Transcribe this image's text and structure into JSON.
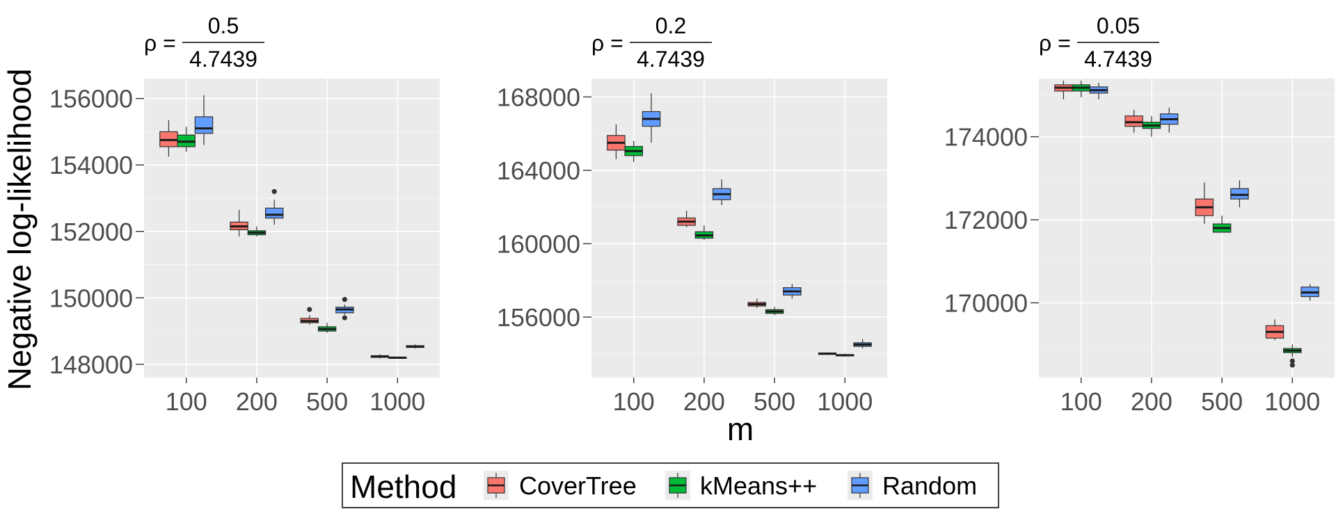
{
  "chart_data": {
    "type": "boxplot",
    "ylabel": "Negative log-likelihood",
    "xlabel": "m",
    "categories": [
      "100",
      "200",
      "500",
      "1000"
    ],
    "legend": {
      "title": "Method",
      "placement": "bottom",
      "entries": [
        {
          "name": "CoverTree",
          "color": "#F8766D"
        },
        {
          "name": "kMeans++",
          "color": "#00BA38"
        },
        {
          "name": "Random",
          "color": "#619CFF"
        }
      ]
    },
    "panels": [
      {
        "title_prefix": "ρ =",
        "title_numerator": "0.5",
        "title_denominator": "4.7439",
        "ylim": [
          147600,
          156600
        ],
        "yticks": [
          148000,
          150000,
          152000,
          154000,
          156000
        ],
        "series": [
          {
            "name": "CoverTree",
            "boxes": [
              {
                "min": 154250,
                "q1": 154550,
                "median": 154750,
                "q3": 155000,
                "max": 155350,
                "outliers": []
              },
              {
                "min": 151850,
                "q1": 152050,
                "median": 152150,
                "q3": 152280,
                "max": 152650,
                "outliers": []
              },
              {
                "min": 149200,
                "q1": 149250,
                "median": 149300,
                "q3": 149380,
                "max": 149480,
                "outliers": [
                  149650
                ]
              },
              {
                "min": 148180,
                "q1": 148210,
                "median": 148230,
                "q3": 148260,
                "max": 148300,
                "outliers": []
              }
            ]
          },
          {
            "name": "kMeans++",
            "boxes": [
              {
                "min": 154400,
                "q1": 154550,
                "median": 154700,
                "q3": 154900,
                "max": 155150,
                "outliers": []
              },
              {
                "min": 151850,
                "q1": 151900,
                "median": 151960,
                "q3": 152020,
                "max": 152150,
                "outliers": []
              },
              {
                "min": 148950,
                "q1": 149000,
                "median": 149060,
                "q3": 149130,
                "max": 149250,
                "outliers": []
              },
              {
                "min": 148180,
                "q1": 148195,
                "median": 148200,
                "q3": 148210,
                "max": 148220,
                "outliers": []
              }
            ]
          },
          {
            "name": "Random",
            "boxes": [
              {
                "min": 154600,
                "q1": 154950,
                "median": 155100,
                "q3": 155450,
                "max": 156100,
                "outliers": []
              },
              {
                "min": 152200,
                "q1": 152400,
                "median": 152500,
                "q3": 152700,
                "max": 152950,
                "outliers": [
                  153200
                ]
              },
              {
                "min": 149500,
                "q1": 149550,
                "median": 149650,
                "q3": 149720,
                "max": 149800,
                "outliers": [
                  149950,
                  149400
                ]
              },
              {
                "min": 148480,
                "q1": 148510,
                "median": 148530,
                "q3": 148560,
                "max": 148600,
                "outliers": []
              }
            ]
          }
        ]
      },
      {
        "title_prefix": "ρ =",
        "title_numerator": "0.2",
        "title_denominator": "4.7439",
        "ylim": [
          152700,
          169000
        ],
        "yticks": [
          156000,
          160000,
          164000,
          168000
        ],
        "series": [
          {
            "name": "CoverTree",
            "boxes": [
              {
                "min": 164600,
                "q1": 165100,
                "median": 165500,
                "q3": 165900,
                "max": 166500,
                "outliers": []
              },
              {
                "min": 160900,
                "q1": 161000,
                "median": 161200,
                "q3": 161400,
                "max": 161800,
                "outliers": []
              },
              {
                "min": 156500,
                "q1": 156600,
                "median": 156700,
                "q3": 156800,
                "max": 157000,
                "outliers": []
              },
              {
                "min": 153950,
                "q1": 153980,
                "median": 154000,
                "q3": 154040,
                "max": 154080,
                "outliers": []
              }
            ]
          },
          {
            "name": "kMeans++",
            "boxes": [
              {
                "min": 164450,
                "q1": 164800,
                "median": 165050,
                "q3": 165300,
                "max": 165600,
                "outliers": []
              },
              {
                "min": 160200,
                "q1": 160300,
                "median": 160450,
                "q3": 160650,
                "max": 161000,
                "outliers": []
              },
              {
                "min": 156100,
                "q1": 156200,
                "median": 156300,
                "q3": 156400,
                "max": 156550,
                "outliers": []
              },
              {
                "min": 153850,
                "q1": 153900,
                "median": 153920,
                "q3": 153950,
                "max": 154000,
                "outliers": []
              }
            ]
          },
          {
            "name": "Random",
            "boxes": [
              {
                "min": 165500,
                "q1": 166400,
                "median": 166800,
                "q3": 167200,
                "max": 168200,
                "outliers": []
              },
              {
                "min": 162100,
                "q1": 162400,
                "median": 162700,
                "q3": 163000,
                "max": 163500,
                "outliers": []
              },
              {
                "min": 157000,
                "q1": 157200,
                "median": 157400,
                "q3": 157600,
                "max": 157800,
                "outliers": []
              },
              {
                "min": 154300,
                "q1": 154400,
                "median": 154500,
                "q3": 154600,
                "max": 154800,
                "outliers": []
              }
            ]
          }
        ]
      },
      {
        "title_prefix": "ρ =",
        "title_numerator": "0.05",
        "title_denominator": "4.7439",
        "ylim": [
          168200,
          175400
        ],
        "yticks": [
          170000,
          172000,
          174000
        ],
        "series": [
          {
            "name": "CoverTree",
            "boxes": [
              {
                "min": 174900,
                "q1": 175100,
                "median": 175180,
                "q3": 175250,
                "max": 175350,
                "outliers": []
              },
              {
                "min": 174100,
                "q1": 174250,
                "median": 174350,
                "q3": 174500,
                "max": 174650,
                "outliers": []
              },
              {
                "min": 171900,
                "q1": 172100,
                "median": 172300,
                "q3": 172500,
                "max": 172900,
                "outliers": []
              },
              {
                "min": 169100,
                "q1": 169150,
                "median": 169300,
                "q3": 169450,
                "max": 169600,
                "outliers": []
              }
            ]
          },
          {
            "name": "kMeans++",
            "boxes": [
              {
                "min": 174950,
                "q1": 175100,
                "median": 175180,
                "q3": 175250,
                "max": 175350,
                "outliers": []
              },
              {
                "min": 174000,
                "q1": 174200,
                "median": 174270,
                "q3": 174350,
                "max": 174500,
                "outliers": []
              },
              {
                "min": 171700,
                "q1": 171700,
                "median": 171800,
                "q3": 171900,
                "max": 172100,
                "outliers": []
              },
              {
                "min": 168700,
                "q1": 168800,
                "median": 168850,
                "q3": 168900,
                "max": 169000,
                "outliers": [
                  168600,
                  168500
                ]
              }
            ]
          },
          {
            "name": "Random",
            "boxes": [
              {
                "min": 174900,
                "q1": 175050,
                "median": 175120,
                "q3": 175200,
                "max": 175300,
                "outliers": []
              },
              {
                "min": 174100,
                "q1": 174300,
                "median": 174420,
                "q3": 174550,
                "max": 174700,
                "outliers": []
              },
              {
                "min": 172300,
                "q1": 172500,
                "median": 172600,
                "q3": 172750,
                "max": 172950,
                "outliers": []
              },
              {
                "min": 170050,
                "q1": 170150,
                "median": 170250,
                "q3": 170380,
                "max": 170450,
                "outliers": []
              }
            ]
          }
        ]
      }
    ]
  }
}
